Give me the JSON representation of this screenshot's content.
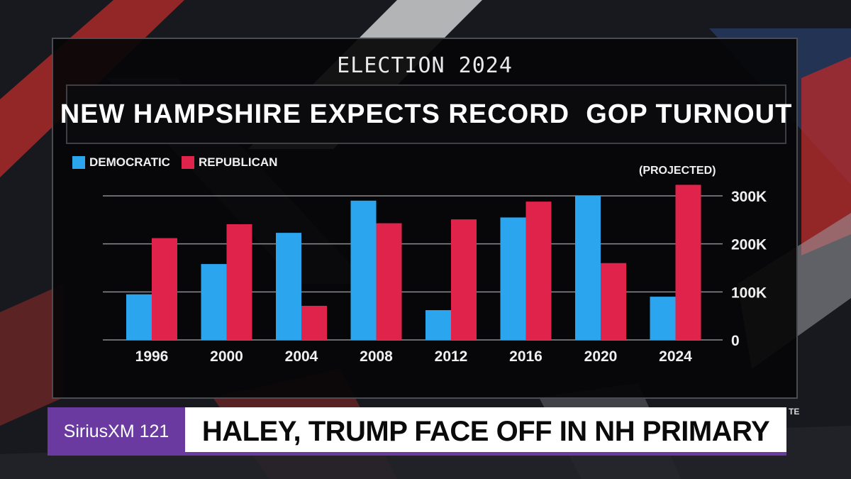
{
  "kicker": "ELECTION 2024",
  "title": "NEW HAMPSHIRE EXPECTS RECORD  GOP TURNOUT",
  "legend": [
    {
      "label": "DEMOCRATIC",
      "color": "#2aa5ee"
    },
    {
      "label": "REPUBLICAN",
      "color": "#e0234a"
    }
  ],
  "annotation": "(PROJECTED)",
  "chart_data": {
    "type": "bar",
    "title": "NEW HAMPSHIRE EXPECTS RECORD  GOP TURNOUT",
    "xlabel": "",
    "ylabel": "",
    "categories": [
      "1996",
      "2000",
      "2004",
      "2008",
      "2012",
      "2016",
      "2020",
      "2024"
    ],
    "series": [
      {
        "name": "DEMOCRATIC",
        "color": "#2aa5ee",
        "values": [
          95000,
          158000,
          223000,
          290000,
          62000,
          255000,
          300000,
          90000
        ]
      },
      {
        "name": "REPUBLICAN",
        "color": "#e0234a",
        "values": [
          212000,
          241000,
          71000,
          243000,
          251000,
          288000,
          160000,
          323000
        ]
      }
    ],
    "ylim": [
      0,
      300000
    ],
    "yticks": [
      0,
      100000,
      200000,
      300000
    ],
    "ytick_labels": [
      "0",
      "100K",
      "200K",
      "300K"
    ],
    "grid": true,
    "legend_position": "top-left",
    "yaxis_side": "right"
  },
  "ticker": {
    "channel": "SiriusXM 121",
    "headline": "HALEY, TRUMP FACE OFF IN NH PRIMARY",
    "corner": "TE"
  }
}
